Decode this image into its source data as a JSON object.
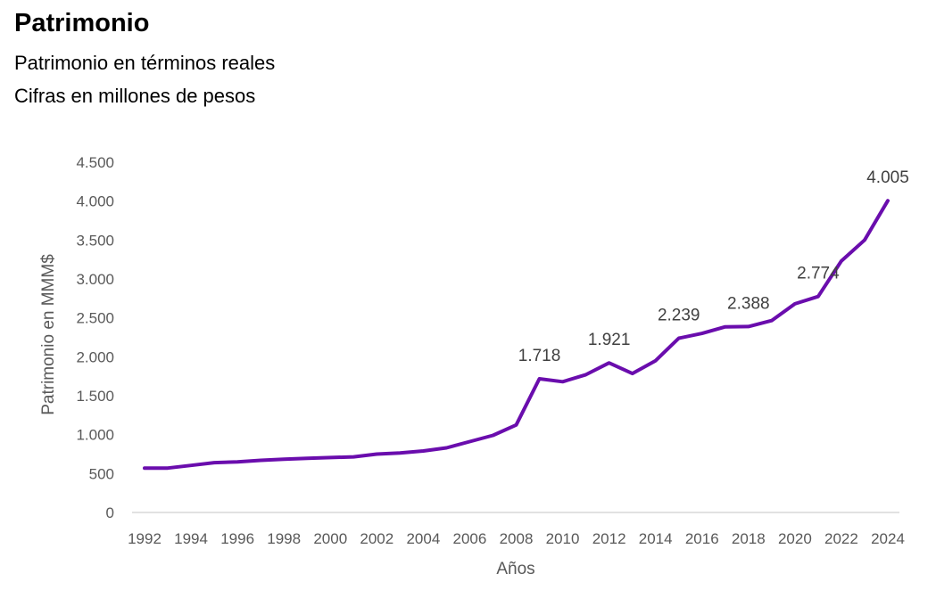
{
  "header": {
    "title": "Patrimonio",
    "subtitle1": "Patrimonio en términos reales",
    "subtitle2": "Cifras en millones de pesos"
  },
  "colors": {
    "line": "#6a0dad",
    "axis": "#d9d9d9",
    "text": "#595959"
  },
  "chart_data": {
    "type": "line",
    "xlabel": "Años",
    "ylabel": "Patrimonio en MMM$",
    "ylim": [
      0,
      4500
    ],
    "yticks": [
      0,
      500,
      1000,
      1500,
      2000,
      2500,
      3000,
      3500,
      4000,
      4500
    ],
    "ytick_labels": [
      "0",
      "500",
      "1.000",
      "1.500",
      "2.000",
      "2.500",
      "3.000",
      "3.500",
      "4.000",
      "4.500"
    ],
    "xlim": [
      1992,
      2024
    ],
    "xticks": [
      1992,
      1994,
      1996,
      1998,
      2000,
      2002,
      2004,
      2006,
      2008,
      2010,
      2012,
      2014,
      2016,
      2018,
      2020,
      2022,
      2024
    ],
    "grid": false,
    "legend": "none",
    "x": [
      1992,
      1993,
      1994,
      1995,
      1996,
      1997,
      1998,
      1999,
      2000,
      2001,
      2002,
      2003,
      2004,
      2005,
      2006,
      2007,
      2008,
      2009,
      2010,
      2011,
      2012,
      2013,
      2014,
      2015,
      2016,
      2017,
      2018,
      2019,
      2020,
      2021,
      2022,
      2023,
      2024
    ],
    "values": [
      570,
      570,
      605,
      640,
      650,
      670,
      685,
      695,
      705,
      715,
      750,
      765,
      790,
      830,
      910,
      990,
      1125,
      1718,
      1680,
      1770,
      1921,
      1785,
      1950,
      2239,
      2300,
      2385,
      2388,
      2465,
      2680,
      2774,
      3230,
      3500,
      4005
    ],
    "annotations": [
      {
        "x": 2009,
        "y": 1718,
        "text": "1.718"
      },
      {
        "x": 2012,
        "y": 1921,
        "text": "1.921"
      },
      {
        "x": 2015,
        "y": 2239,
        "text": "2.239"
      },
      {
        "x": 2018,
        "y": 2388,
        "text": "2.388"
      },
      {
        "x": 2021,
        "y": 2774,
        "text": "2.774"
      },
      {
        "x": 2024,
        "y": 4005,
        "text": "4.005"
      }
    ]
  }
}
